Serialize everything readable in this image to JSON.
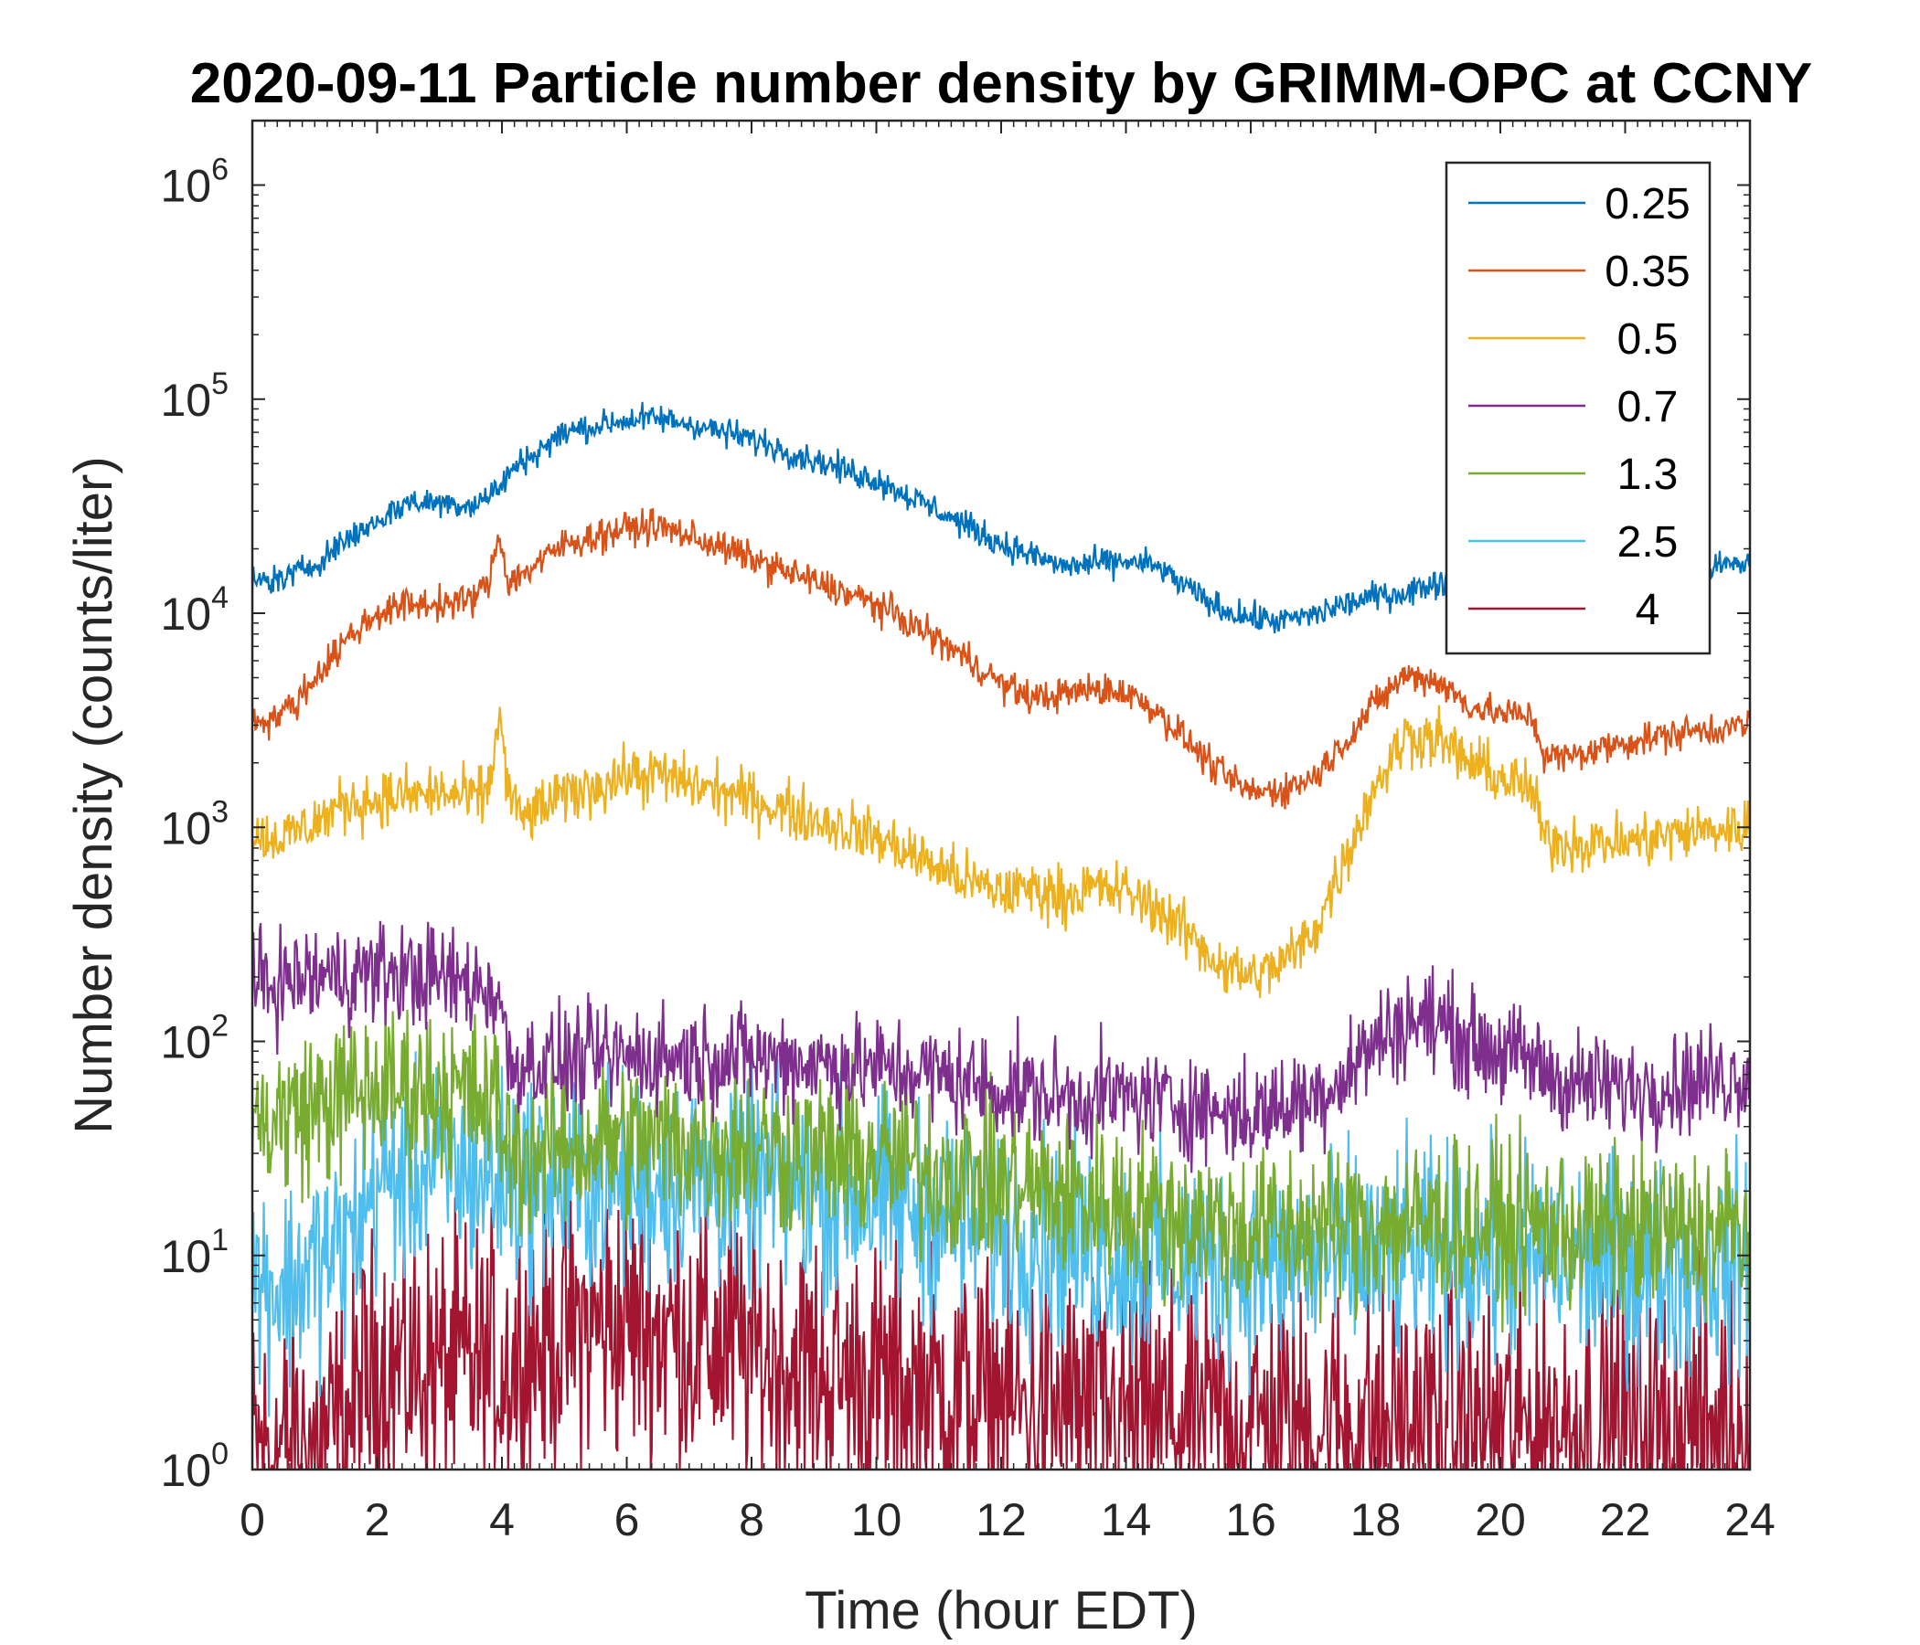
{
  "chart_data": {
    "type": "line",
    "title": "2020-09-11 Particle number density by GRIMM-OPC at CCNY",
    "xlabel": "Time (hour EDT)",
    "ylabel": "Number density (counts/liter)",
    "xlim": [
      0,
      24
    ],
    "ylim": [
      1,
      2000000
    ],
    "yscale": "log",
    "xticks": [
      0,
      2,
      4,
      6,
      8,
      10,
      12,
      14,
      16,
      18,
      20,
      22,
      24
    ],
    "yticks": [
      {
        "value": 1,
        "base": "10",
        "exp": "0"
      },
      {
        "value": 10,
        "base": "10",
        "exp": "1"
      },
      {
        "value": 100,
        "base": "10",
        "exp": "2"
      },
      {
        "value": 1000,
        "base": "10",
        "exp": "3"
      },
      {
        "value": 10000,
        "base": "10",
        "exp": "4"
      },
      {
        "value": 100000,
        "base": "10",
        "exp": "5"
      },
      {
        "value": 1000000,
        "base": "10",
        "exp": "6"
      }
    ],
    "legend_position": "top-right",
    "series": [
      {
        "name": "0.25",
        "color": "#0072BD",
        "noise": 0.06,
        "x": [
          0,
          0.5,
          1,
          1.5,
          2,
          2.5,
          3,
          3.5,
          3.9,
          4.2,
          5,
          6,
          6.5,
          7,
          8,
          9,
          10,
          11,
          12,
          13,
          14,
          14.5,
          15,
          15.5,
          16,
          16.5,
          17,
          17.5,
          18,
          18.5,
          19,
          19.5,
          20,
          20.5,
          21,
          21.5,
          22,
          23,
          24
        ],
        "values": [
          14000,
          14500,
          17000,
          22000,
          27000,
          33000,
          33000,
          32000,
          37000,
          48000,
          70000,
          80000,
          81000,
          77000,
          65000,
          52000,
          42000,
          30000,
          21000,
          16500,
          17500,
          16500,
          13000,
          10500,
          9500,
          9200,
          9800,
          11000,
          12000,
          12500,
          14000,
          13500,
          13000,
          13000,
          13500,
          14000,
          15000,
          16000,
          17000
        ]
      },
      {
        "name": "0.35",
        "color": "#D95319",
        "noise": 0.07,
        "x": [
          0,
          0.3,
          0.7,
          1,
          1.5,
          2,
          2.5,
          3,
          3.5,
          3.8,
          3.95,
          4.1,
          4.3,
          5,
          6,
          6.5,
          7,
          8,
          9,
          10,
          11,
          11.5,
          12,
          12.5,
          13,
          13.5,
          14,
          14.5,
          15,
          15.5,
          16,
          16.5,
          17,
          17.5,
          18,
          18.5,
          19,
          19.5,
          20,
          20.5,
          20.7,
          21,
          22,
          23,
          24
        ],
        "values": [
          3200,
          3200,
          3800,
          5000,
          7500,
          10000,
          11000,
          11000,
          11500,
          14000,
          24000,
          14000,
          15000,
          21000,
          25000,
          25500,
          23000,
          18000,
          14000,
          11000,
          7500,
          6000,
          4700,
          4000,
          4200,
          4400,
          4300,
          3500,
          2500,
          1800,
          1450,
          1500,
          1700,
          2500,
          3800,
          5200,
          4800,
          3700,
          3400,
          3300,
          2200,
          2100,
          2500,
          2800,
          3000
        ]
      },
      {
        "name": "0.5",
        "color": "#EDB120",
        "noise": 0.12,
        "x": [
          0,
          0.5,
          1,
          1.5,
          2,
          2.5,
          3,
          3.5,
          3.8,
          3.95,
          4.1,
          4.3,
          5,
          6,
          6.5,
          7,
          8,
          9,
          10,
          11,
          11.5,
          12,
          12.5,
          13,
          13.5,
          14,
          14.5,
          15,
          15.5,
          16,
          16.5,
          17,
          17.5,
          18,
          18.5,
          19,
          19.5,
          20,
          20.5,
          20.7,
          21,
          22,
          23,
          24
        ],
        "values": [
          900,
          900,
          1050,
          1300,
          1350,
          1400,
          1450,
          1350,
          1500,
          3500,
          1500,
          1100,
          1400,
          1750,
          1750,
          1600,
          1350,
          1100,
          900,
          650,
          550,
          500,
          520,
          480,
          520,
          500,
          420,
          320,
          230,
          200,
          230,
          320,
          700,
          1600,
          2700,
          2600,
          2000,
          1700,
          1500,
          900,
          850,
          850,
          950,
          1000
        ]
      },
      {
        "name": "0.7",
        "color": "#7E2F8E",
        "noise": 0.22,
        "x": [
          0,
          1,
          2,
          3,
          3.95,
          4.1,
          5,
          6,
          7,
          8,
          9,
          10,
          11,
          12,
          13,
          14,
          15,
          16,
          17,
          17.5,
          18,
          18.5,
          19,
          19.5,
          20,
          20.5,
          21,
          22,
          23,
          24
        ],
        "values": [
          180,
          200,
          210,
          200,
          170,
          80,
          80,
          85,
          85,
          85,
          80,
          75,
          70,
          60,
          55,
          55,
          50,
          45,
          55,
          70,
          100,
          125,
          125,
          100,
          90,
          80,
          65,
          60,
          65,
          70
        ]
      },
      {
        "name": "1.3",
        "color": "#77AC30",
        "noise": 0.35,
        "x": [
          0,
          1,
          2,
          3,
          3.95,
          4.1,
          6,
          8,
          10,
          12,
          14,
          16,
          18,
          20,
          22,
          24
        ],
        "values": [
          40,
          50,
          60,
          60,
          50,
          30,
          35,
          32,
          28,
          22,
          17,
          13,
          14,
          14,
          13,
          13
        ]
      },
      {
        "name": "2.5",
        "color": "#4DBEEE",
        "noise": 0.45,
        "x": [
          0,
          0.5,
          1,
          1.5,
          2,
          3,
          4,
          6,
          8,
          10,
          12,
          14,
          16,
          18,
          20,
          22,
          24
        ],
        "values": [
          8,
          7,
          9,
          11,
          22,
          26,
          22,
          22,
          22,
          18,
          13,
          10,
          9,
          10,
          10,
          9,
          9
        ]
      },
      {
        "name": "4",
        "color": "#A2142F",
        "noise": 0.6,
        "x": [
          0,
          1,
          1.4,
          2,
          3,
          4,
          5,
          6,
          8,
          10,
          12,
          14,
          16,
          18,
          20,
          22,
          24
        ],
        "values": [
          1.2,
          1.3,
          1.5,
          3,
          3,
          3,
          4.5,
          5,
          3.5,
          2.5,
          2,
          1.8,
          1.6,
          1.6,
          1.6,
          1.6,
          1.6
        ]
      }
    ]
  }
}
